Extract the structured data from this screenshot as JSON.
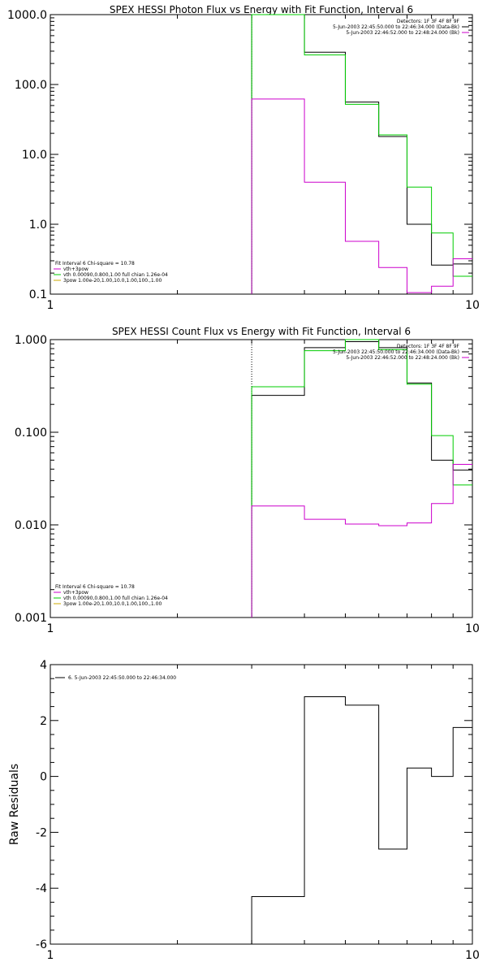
{
  "chart_data": [
    {
      "type": "line",
      "title": "SPEX HESSI Photon Flux vs Energy with Fit Function, Interval 6",
      "xscale": "log",
      "yscale": "log",
      "xlim": [
        1,
        10
      ],
      "ylim": [
        0.1,
        1000
      ],
      "x_ticks": [
        "1",
        "10"
      ],
      "y_ticks": [
        "0.1",
        "1.0",
        "10.0",
        "100.0",
        "1000.0"
      ],
      "y_tick_values": [
        0.1,
        1,
        10,
        100,
        1000
      ],
      "vline_x": 3,
      "legend_top_right": [
        "Detectors: 1F 3F 4F 8F 9F",
        "5-Jun-2003 22:45:50.000 to 22:46:34.000 (Data-Bk)",
        "5-Jun-2003 22:46:52.000 to 22:48:24.000 (Bk)"
      ],
      "legend_bottom_left": [
        "Fit Interval 6   Chi-square = 10.78",
        "vth+3pow",
        "vth 0.00090,0.800,1.00  full chian 1.26e-04",
        "3pow 1.00e-20,1.00,10.0,1.00,100.,1.00"
      ],
      "edges": [
        3,
        4,
        5,
        6,
        7,
        8,
        9,
        10
      ],
      "series": [
        {
          "name": "Data-Bk",
          "color": "#000000",
          "values": [
            1000,
            290,
            56,
            18,
            1.0,
            0.26,
            0.27
          ]
        },
        {
          "name": "vth+3pow",
          "color": "#00cc00",
          "values": [
            1000,
            265,
            52,
            19,
            3.4,
            0.75,
            0.18
          ]
        },
        {
          "name": "Bk",
          "color": "#cc00cc",
          "values": [
            62,
            4,
            0.57,
            0.24,
            0.105,
            0.13,
            0.32
          ]
        }
      ]
    },
    {
      "type": "line",
      "title": "SPEX HESSI Count Flux vs Energy with Fit Function, Interval 6",
      "xscale": "log",
      "yscale": "log",
      "xlim": [
        1,
        10
      ],
      "ylim": [
        0.001,
        1
      ],
      "x_ticks": [
        "1",
        "10"
      ],
      "y_ticks": [
        "0.001",
        "0.010",
        "0.100",
        "1.000"
      ],
      "y_tick_values": [
        0.001,
        0.01,
        0.1,
        1
      ],
      "vline_x": 3,
      "legend_top_right": [
        "Detectors: 1F 3F 4F 8F 9F",
        "5-Jun-2003 22:45:50.000 to 22:46:34.000 (Data-Bk)",
        "5-Jun-2003 22:46:52.000 to 22:48:24.000 (Bk)"
      ],
      "legend_bottom_left": [
        "Fit Interval 6   Chi-square = 10.78",
        "vth+3pow",
        "vth 0.00090,0.800,1.00  full chian 1.26e-04",
        "3pow 1.00e-20,1.00,10.0,1.00,100.,1.00"
      ],
      "edges": [
        3,
        4,
        5,
        6,
        7,
        8,
        9,
        10
      ],
      "series": [
        {
          "name": "Data-Bk",
          "color": "#000000",
          "values": [
            0.25,
            0.82,
            0.95,
            0.82,
            0.34,
            0.05,
            0.039
          ]
        },
        {
          "name": "vth+3pow",
          "color": "#00cc00",
          "values": [
            0.31,
            0.76,
            1.0,
            0.78,
            0.33,
            0.092,
            0.027
          ]
        },
        {
          "name": "Bk",
          "color": "#cc00cc",
          "values": [
            0.016,
            0.0115,
            0.0102,
            0.0098,
            0.0105,
            0.017,
            0.045
          ]
        }
      ]
    },
    {
      "type": "line",
      "title": "",
      "xscale": "log",
      "yscale": "linear",
      "xlim": [
        1,
        10
      ],
      "ylim": [
        -6,
        4
      ],
      "x_ticks": [
        "1",
        "10"
      ],
      "y_ticks": [
        "-6",
        "-4",
        "-2",
        "0",
        "2",
        "4"
      ],
      "y_tick_values": [
        -6,
        -4,
        -2,
        0,
        2,
        4
      ],
      "ylabel": "Raw Residuals",
      "legend_top_left": [
        "6.  5-Jun-2003 22:45:50.000 to 22:46:34.000"
      ],
      "edges": [
        3,
        4,
        5,
        6,
        7,
        8,
        9,
        10
      ],
      "series": [
        {
          "name": "6.  5-Jun-2003 22:45:50.000 to 22:46:34.000",
          "color": "#000000",
          "values": [
            -4.3,
            2.85,
            2.55,
            -2.6,
            0.3,
            0.0,
            1.75
          ]
        }
      ]
    }
  ]
}
